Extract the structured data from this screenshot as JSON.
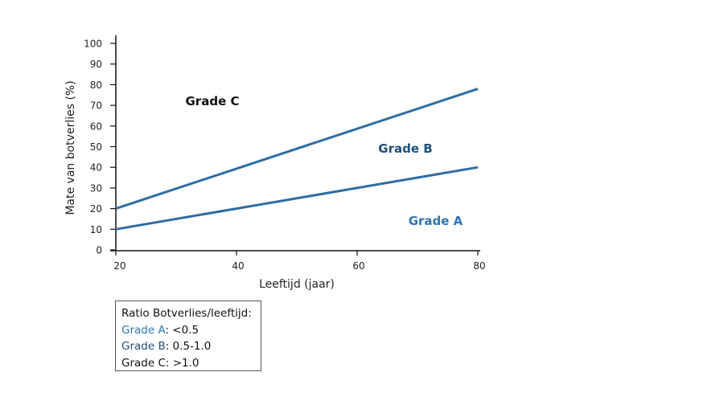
{
  "chart_data": {
    "type": "line",
    "xlabel": "Leeftijd (jaar)",
    "ylabel": "Mate van botverlies (%)",
    "xlim": [
      20,
      80
    ],
    "ylim": [
      0,
      100
    ],
    "xticks": [
      20,
      40,
      60,
      80
    ],
    "yticks": [
      0,
      10,
      20,
      30,
      40,
      50,
      60,
      70,
      80,
      90,
      100
    ],
    "grid": false,
    "line_color": "#2e6da4",
    "series": [
      {
        "x": [
          20,
          80
        ],
        "y": [
          20,
          78
        ]
      },
      {
        "x": [
          20,
          80
        ],
        "y": [
          10,
          40
        ]
      }
    ],
    "annotations": [
      {
        "text": "Grade C",
        "x": 36,
        "y": 72,
        "color": "#111111"
      },
      {
        "text": "Grade B",
        "x": 68,
        "y": 49,
        "color": "#1f4e79"
      },
      {
        "text": "Grade A",
        "x": 73,
        "y": 14,
        "color": "#2e75b6"
      }
    ]
  },
  "legend": {
    "title": "Ratio Botverlies/leeftijd:",
    "items": [
      {
        "label": "Grade A",
        "value": ": <0.5",
        "color": "#2e75b6"
      },
      {
        "label": "Grade B",
        "value": ": 0.5-1.0",
        "color": "#1f4e79"
      },
      {
        "label": "Grade C",
        "value": ": >1.0",
        "color": "#111111"
      }
    ]
  }
}
